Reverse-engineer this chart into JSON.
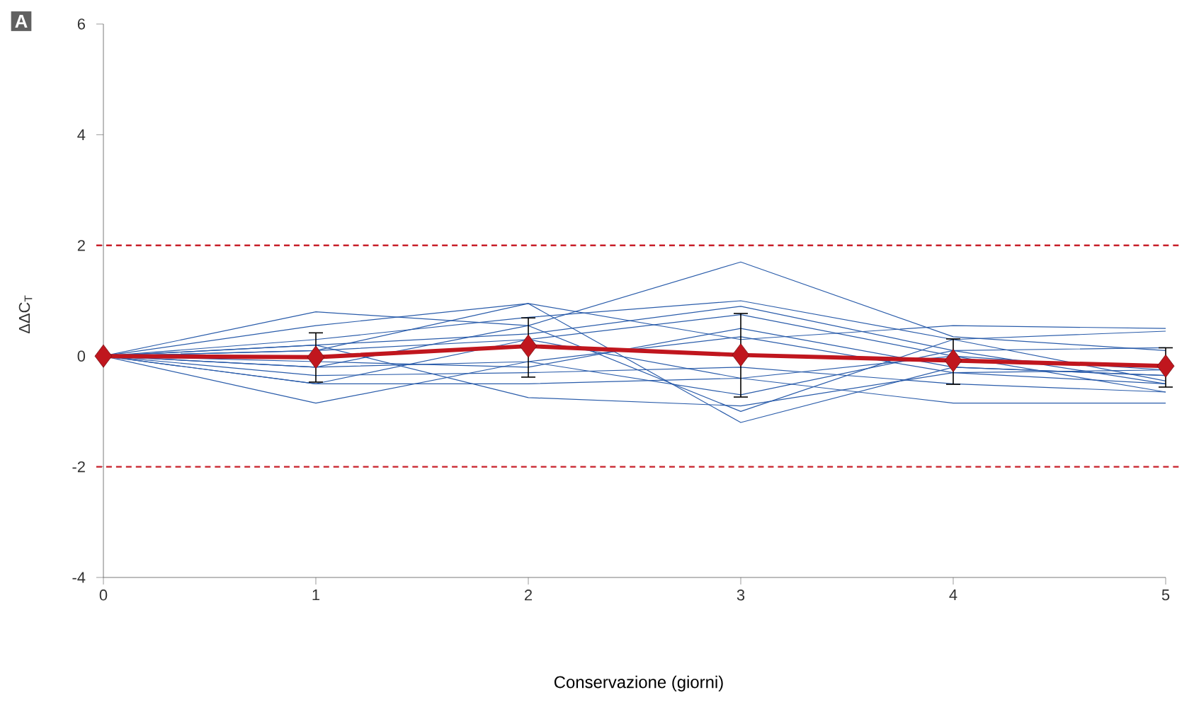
{
  "chart_data": {
    "type": "line",
    "xlabel": "Conservazione (giorni)",
    "ylabel": "ΔΔC$_{T}$",
    "annotations": [
      "A"
    ],
    "x": [
      0,
      1,
      2,
      3,
      4,
      5
    ],
    "xlim": [
      0,
      5
    ],
    "ylim": [
      -4,
      6
    ],
    "xticks": [
      0,
      1,
      2,
      3,
      4,
      5
    ],
    "yticks": [
      -4,
      -2,
      0,
      2,
      4,
      6
    ],
    "ref_lines": [
      {
        "axis": "y",
        "value": 2,
        "color": "#c8202a",
        "line_style": "dashed"
      },
      {
        "axis": "y",
        "value": -2,
        "color": "#c8202a",
        "line_style": "dashed"
      }
    ],
    "series": [
      {
        "color": "#2a5caa",
        "marker": "none",
        "values": [
          0,
          0.8,
          0.55,
          1.7,
          0.35,
          0.1
        ]
      },
      {
        "color": "#2a5caa",
        "marker": "none",
        "values": [
          0,
          0.55,
          0.95,
          0.3,
          0.55,
          0.5
        ]
      },
      {
        "color": "#2a5caa",
        "marker": "none",
        "values": [
          0,
          0.3,
          0.7,
          1.0,
          0.3,
          0.45
        ]
      },
      {
        "color": "#2a5caa",
        "marker": "none",
        "values": [
          0,
          0.2,
          0.4,
          0.9,
          0.1,
          0.15
        ]
      },
      {
        "color": "#2a5caa",
        "marker": "none",
        "values": [
          0,
          0.1,
          0.3,
          0.75,
          0.0,
          -0.25
        ]
      },
      {
        "color": "#2a5caa",
        "marker": "none",
        "values": [
          0,
          -0.1,
          -0.2,
          0.5,
          -0.2,
          -0.35
        ]
      },
      {
        "color": "#2a5caa",
        "marker": "none",
        "values": [
          0,
          -0.2,
          -0.1,
          0.35,
          -0.3,
          -0.5
        ]
      },
      {
        "color": "#2a5caa",
        "marker": "none",
        "values": [
          0,
          -0.35,
          -0.3,
          -0.2,
          -0.5,
          -0.65
        ]
      },
      {
        "color": "#2a5caa",
        "marker": "none",
        "values": [
          0,
          -0.5,
          -0.5,
          -0.4,
          -0.85,
          -0.85
        ]
      },
      {
        "color": "#2a5caa",
        "marker": "none",
        "values": [
          0,
          -0.85,
          -0.1,
          -0.7,
          0.1,
          -0.5
        ]
      },
      {
        "color": "#2a5caa",
        "marker": "none",
        "values": [
          0,
          0.2,
          -0.75,
          -0.9,
          -0.3,
          -0.25
        ]
      },
      {
        "color": "#2a5caa",
        "marker": "none",
        "values": [
          0,
          -0.2,
          0.55,
          -1.0,
          0.3,
          -0.45
        ]
      },
      {
        "color": "#2a5caa",
        "marker": "none",
        "values": [
          0,
          0.1,
          0.95,
          -1.2,
          -0.2,
          -0.35
        ]
      },
      {
        "color": "#2a5caa",
        "marker": "none",
        "values": [
          0,
          -0.5,
          0.3,
          -0.4,
          0.0,
          -0.65
        ]
      },
      {
        "color": "#c0161e",
        "marker": "diamond",
        "values": [
          0,
          -0.02,
          0.18,
          0.02,
          -0.08,
          -0.18
        ],
        "errors": [
          null,
          [
            -0.47,
            0.42
          ],
          [
            -0.38,
            0.69
          ],
          [
            -0.74,
            0.77
          ],
          [
            -0.51,
            0.31
          ],
          [
            -0.56,
            0.15
          ]
        ]
      }
    ]
  }
}
